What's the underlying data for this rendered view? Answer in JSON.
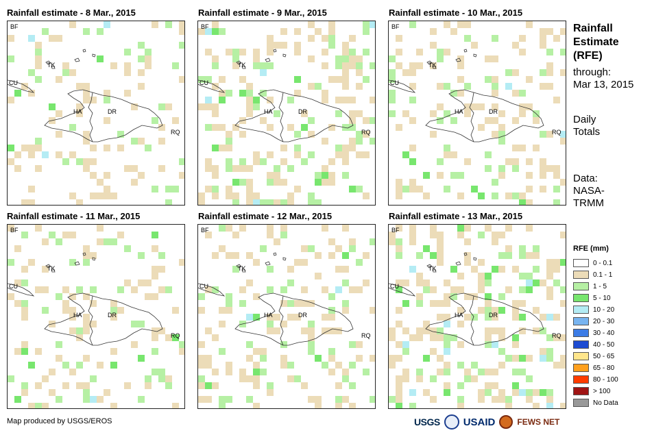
{
  "panels": [
    {
      "title": "Rainfall estimate - 8 Mar., 2015"
    },
    {
      "title": "Rainfall estimate - 9 Mar., 2015"
    },
    {
      "title": "Rainfall estimate - 10 Mar., 2015"
    },
    {
      "title": "Rainfall estimate - 11 Mar., 2015"
    },
    {
      "title": "Rainfall estimate - 12 Mar., 2015"
    },
    {
      "title": "Rainfall estimate - 13 Mar., 2015"
    }
  ],
  "map_labels": {
    "bf": "BF",
    "cu": "CU",
    "tk": "TK",
    "ha": "HA",
    "dr": "DR",
    "rq": "RQ"
  },
  "sidebar": {
    "title_line1": "Rainfall",
    "title_line2": "Estimate",
    "title_line3": "(RFE)",
    "through_label": "through:",
    "through_date": "Mar 13, 2015",
    "totals_line1": "Daily",
    "totals_line2": "Totals",
    "data_line1": "Data:",
    "data_line2": "NASA-",
    "data_line3": "TRMM"
  },
  "legend": {
    "title": "RFE (mm)",
    "items": [
      {
        "label": "0 - 0.1",
        "color": "#ffffff"
      },
      {
        "label": "0.1 - 1",
        "color": "#ecdcb8"
      },
      {
        "label": "1 - 5",
        "color": "#b6f0a4"
      },
      {
        "label": "5 - 10",
        "color": "#78e66e"
      },
      {
        "label": "10 - 20",
        "color": "#b4ecf4"
      },
      {
        "label": "20 - 30",
        "color": "#78b4f0"
      },
      {
        "label": "30 - 40",
        "color": "#3c7ce6"
      },
      {
        "label": "40 - 50",
        "color": "#1e4cd2"
      },
      {
        "label": "50 - 65",
        "color": "#ffe68c"
      },
      {
        "label": "65 - 80",
        "color": "#ffa01e"
      },
      {
        "label": "80 - 100",
        "color": "#ff3c00"
      },
      {
        "label": "> 100",
        "color": "#a01414"
      },
      {
        "label": "No Data",
        "color": "#999999"
      }
    ]
  },
  "footer": {
    "credit": "Map produced by USGS/EROS"
  },
  "logos": {
    "usgs": "USGS",
    "usaid": "USAID",
    "fews": "FEWS NET"
  }
}
